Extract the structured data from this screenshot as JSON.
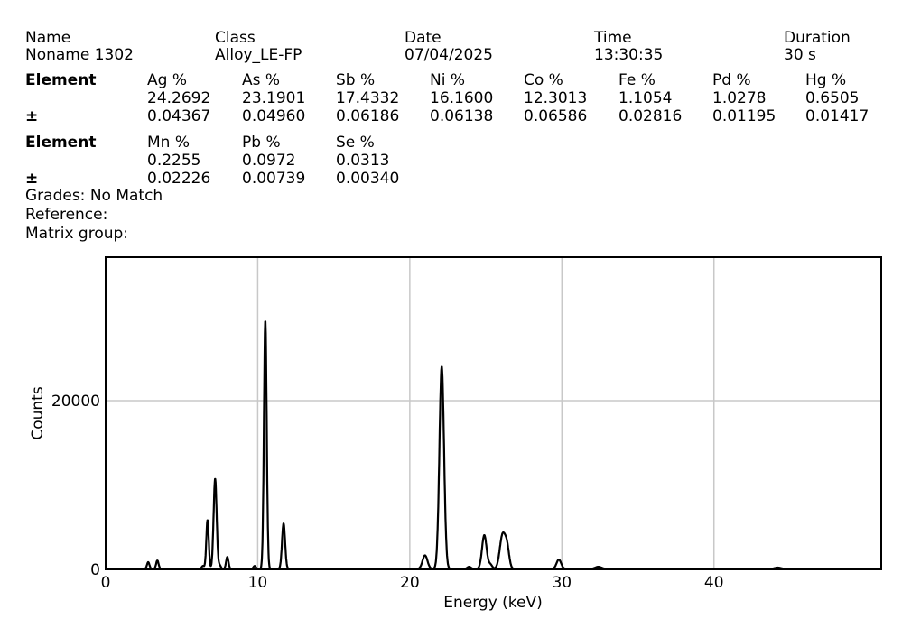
{
  "header": {
    "name_label": "Name",
    "name_value": "Noname 1302",
    "class_label": "Class",
    "class_value": "Alloy_LE-FP",
    "date_label": "Date",
    "date_value": "07/04/2025",
    "time_label": "Time",
    "time_value": "13:30:35",
    "duration_label": "Duration",
    "duration_value": "30 s"
  },
  "results": {
    "element_label": "Element",
    "pm_label": "±",
    "row1": [
      {
        "el": "Ag %",
        "val": "24.2692",
        "err": "0.04367"
      },
      {
        "el": "As %",
        "val": "23.1901",
        "err": "0.04960"
      },
      {
        "el": "Sb %",
        "val": "17.4332",
        "err": "0.06186"
      },
      {
        "el": "Ni %",
        "val": "16.1600",
        "err": "0.06138"
      },
      {
        "el": "Co %",
        "val": "12.3013",
        "err": "0.06586"
      },
      {
        "el": "Fe %",
        "val": "1.1054",
        "err": "0.02816"
      },
      {
        "el": "Pd %",
        "val": "1.0278",
        "err": "0.01195"
      },
      {
        "el": "Hg %",
        "val": "0.6505",
        "err": "0.01417"
      }
    ],
    "row2": [
      {
        "el": "Mn %",
        "val": "0.2255",
        "err": "0.02226"
      },
      {
        "el": "Pb %",
        "val": "0.0972",
        "err": "0.00739"
      },
      {
        "el": "Se %",
        "val": "0.0313",
        "err": "0.00340"
      }
    ],
    "grades": "Grades: No Match",
    "reference": "Reference:",
    "matrix": "Matrix group:"
  },
  "chart_data": {
    "type": "line",
    "xlabel": "Energy (keV)",
    "ylabel": "Counts",
    "xlim": [
      0,
      51
    ],
    "ylim": [
      0,
      37000
    ],
    "xticks": [
      0,
      10,
      20,
      30,
      40
    ],
    "yticks": [
      0,
      20000
    ],
    "grid": true,
    "peaks": [
      {
        "x": 2.8,
        "h": 800,
        "w": 0.08
      },
      {
        "x": 3.4,
        "h": 1000,
        "w": 0.08
      },
      {
        "x": 6.4,
        "h": 350,
        "w": 0.08
      },
      {
        "x": 6.7,
        "h": 5800,
        "w": 0.08
      },
      {
        "x": 7.2,
        "h": 10700,
        "w": 0.1
      },
      {
        "x": 7.5,
        "h": 400,
        "w": 0.08
      },
      {
        "x": 8.0,
        "h": 1400,
        "w": 0.08
      },
      {
        "x": 9.8,
        "h": 350,
        "w": 0.08
      },
      {
        "x": 10.5,
        "h": 29500,
        "w": 0.09
      },
      {
        "x": 11.7,
        "h": 5400,
        "w": 0.1
      },
      {
        "x": 21.0,
        "h": 1600,
        "w": 0.16
      },
      {
        "x": 22.1,
        "h": 24000,
        "w": 0.15
      },
      {
        "x": 23.9,
        "h": 250,
        "w": 0.12
      },
      {
        "x": 24.9,
        "h": 4000,
        "w": 0.15
      },
      {
        "x": 25.3,
        "h": 500,
        "w": 0.12
      },
      {
        "x": 26.1,
        "h": 4000,
        "w": 0.18
      },
      {
        "x": 26.4,
        "h": 2300,
        "w": 0.14
      },
      {
        "x": 29.8,
        "h": 1100,
        "w": 0.15
      },
      {
        "x": 32.4,
        "h": 250,
        "w": 0.2
      },
      {
        "x": 44.2,
        "h": 150,
        "w": 0.2
      }
    ]
  },
  "colors": {
    "line": "#000000",
    "grid": "#c8c8c8"
  }
}
